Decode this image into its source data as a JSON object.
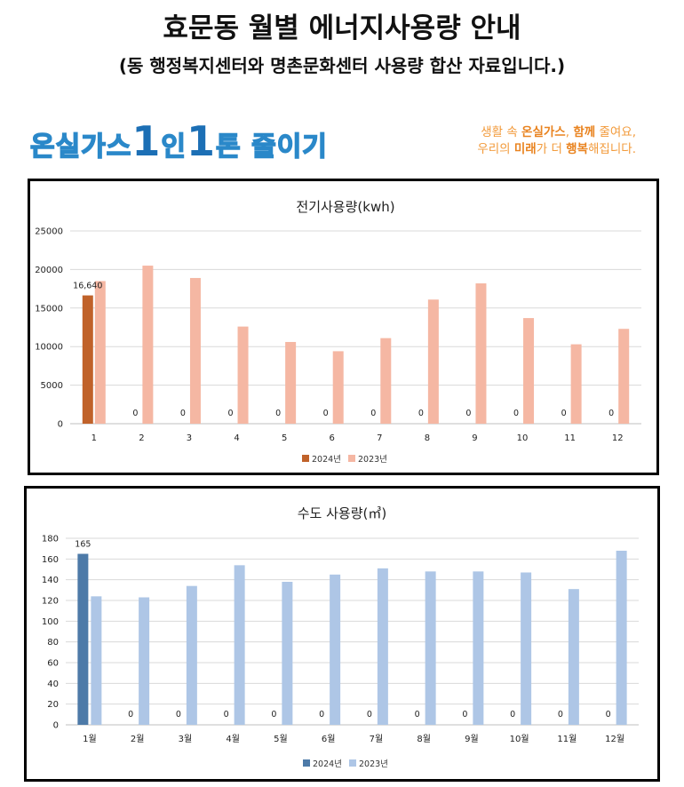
{
  "header": {
    "title": "효문동 월별 에너지사용량 안내",
    "subtitle": "(동 행정복지센터와 명촌문화센터 사용량 합산 자료입니다.)"
  },
  "banner": {
    "slogan_parts": [
      "온실가스",
      "1",
      "인",
      "1",
      "톤 줄이기"
    ],
    "tagline_line1_parts": [
      "생활 속 ",
      "온실가스",
      ", ",
      "함께",
      " 줄여요,"
    ],
    "tagline_line2_parts": [
      "우리의 ",
      "미래",
      "가 더 ",
      "행복",
      "해집니다."
    ]
  },
  "chart_data": [
    {
      "type": "bar",
      "title": "전기사용량(kwh)",
      "categories": [
        "1",
        "2",
        "3",
        "4",
        "5",
        "6",
        "7",
        "8",
        "9",
        "10",
        "11",
        "12"
      ],
      "series": [
        {
          "name": "2024년",
          "color": "#c0622a",
          "values": [
            16640,
            0,
            0,
            0,
            0,
            0,
            0,
            0,
            0,
            0,
            0,
            0
          ],
          "labels": [
            "16,640",
            "0",
            "0",
            "0",
            "0",
            "0",
            "0",
            "0",
            "0",
            "0",
            "0",
            "0"
          ]
        },
        {
          "name": "2023년",
          "color": "#f5b7a3",
          "values": [
            18500,
            20500,
            18900,
            12600,
            10600,
            9400,
            11100,
            16100,
            18200,
            13700,
            10300,
            12300
          ]
        }
      ],
      "ylim": [
        0,
        25000
      ],
      "yticks": [
        "0",
        "5000",
        "10000",
        "15000",
        "20000",
        "25000"
      ],
      "grid": true,
      "legend": "bottom"
    },
    {
      "type": "bar",
      "title": "수도 사용량(㎥)",
      "categories": [
        "1월",
        "2월",
        "3월",
        "4월",
        "5월",
        "6월",
        "7월",
        "8월",
        "9월",
        "10월",
        "11월",
        "12월"
      ],
      "series": [
        {
          "name": "2024년",
          "color": "#4d7aa8",
          "values": [
            165,
            0,
            0,
            0,
            0,
            0,
            0,
            0,
            0,
            0,
            0,
            0
          ],
          "labels": [
            "165",
            "0",
            "0",
            "0",
            "0",
            "0",
            "0",
            "0",
            "0",
            "0",
            "0",
            "0"
          ]
        },
        {
          "name": "2023년",
          "color": "#aec6e6",
          "values": [
            124,
            123,
            134,
            154,
            138,
            145,
            151,
            148,
            148,
            147,
            131,
            168
          ]
        }
      ],
      "ylim": [
        0,
        180
      ],
      "yticks": [
        "0",
        "20",
        "40",
        "60",
        "80",
        "100",
        "120",
        "140",
        "160",
        "180"
      ],
      "grid": true,
      "legend": "bottom"
    }
  ]
}
